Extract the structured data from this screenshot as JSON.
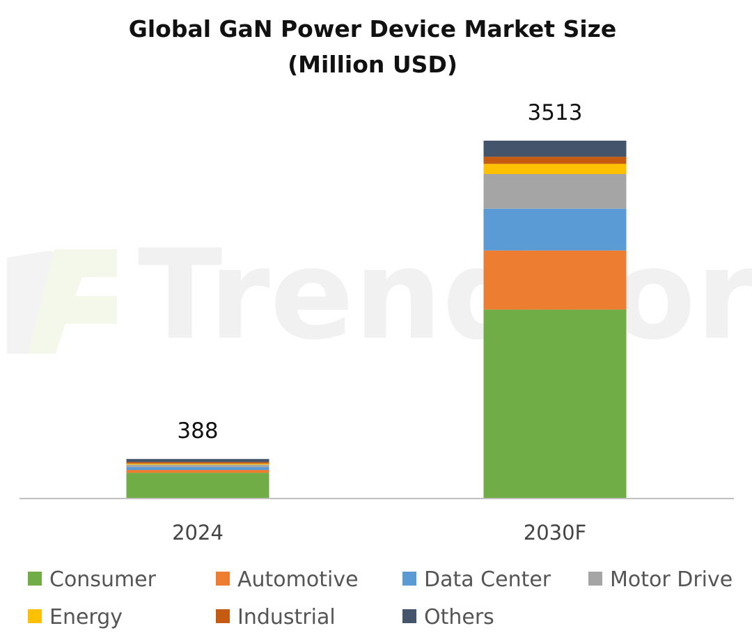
{
  "chart_data": {
    "type": "bar",
    "stacked": true,
    "title": "Global GaN Power Device Market Size",
    "subtitle": "(Million USD)",
    "categories": [
      "2024",
      "2030F"
    ],
    "totals": [
      388,
      3513
    ],
    "series": [
      {
        "name": "Consumer",
        "color": "#70ad47",
        "values": [
          252,
          1855
        ]
      },
      {
        "name": "Automotive",
        "color": "#ed7d31",
        "values": [
          28,
          580
        ]
      },
      {
        "name": "Data Center",
        "color": "#5b9bd5",
        "values": [
          28,
          410
        ]
      },
      {
        "name": "Motor Drive",
        "color": "#a5a5a5",
        "values": [
          25,
          340
        ]
      },
      {
        "name": "Energy",
        "color": "#ffc000",
        "values": [
          10,
          100
        ]
      },
      {
        "name": "Industrial",
        "color": "#c55a11",
        "values": [
          15,
          70
        ]
      },
      {
        "name": "Others",
        "color": "#44546a",
        "values": [
          30,
          158
        ]
      }
    ],
    "ylim": [
      0,
      3513
    ],
    "xlabel": "",
    "ylabel": "",
    "grid": false,
    "legend_position": "bottom",
    "watermark": "TrendForce"
  }
}
